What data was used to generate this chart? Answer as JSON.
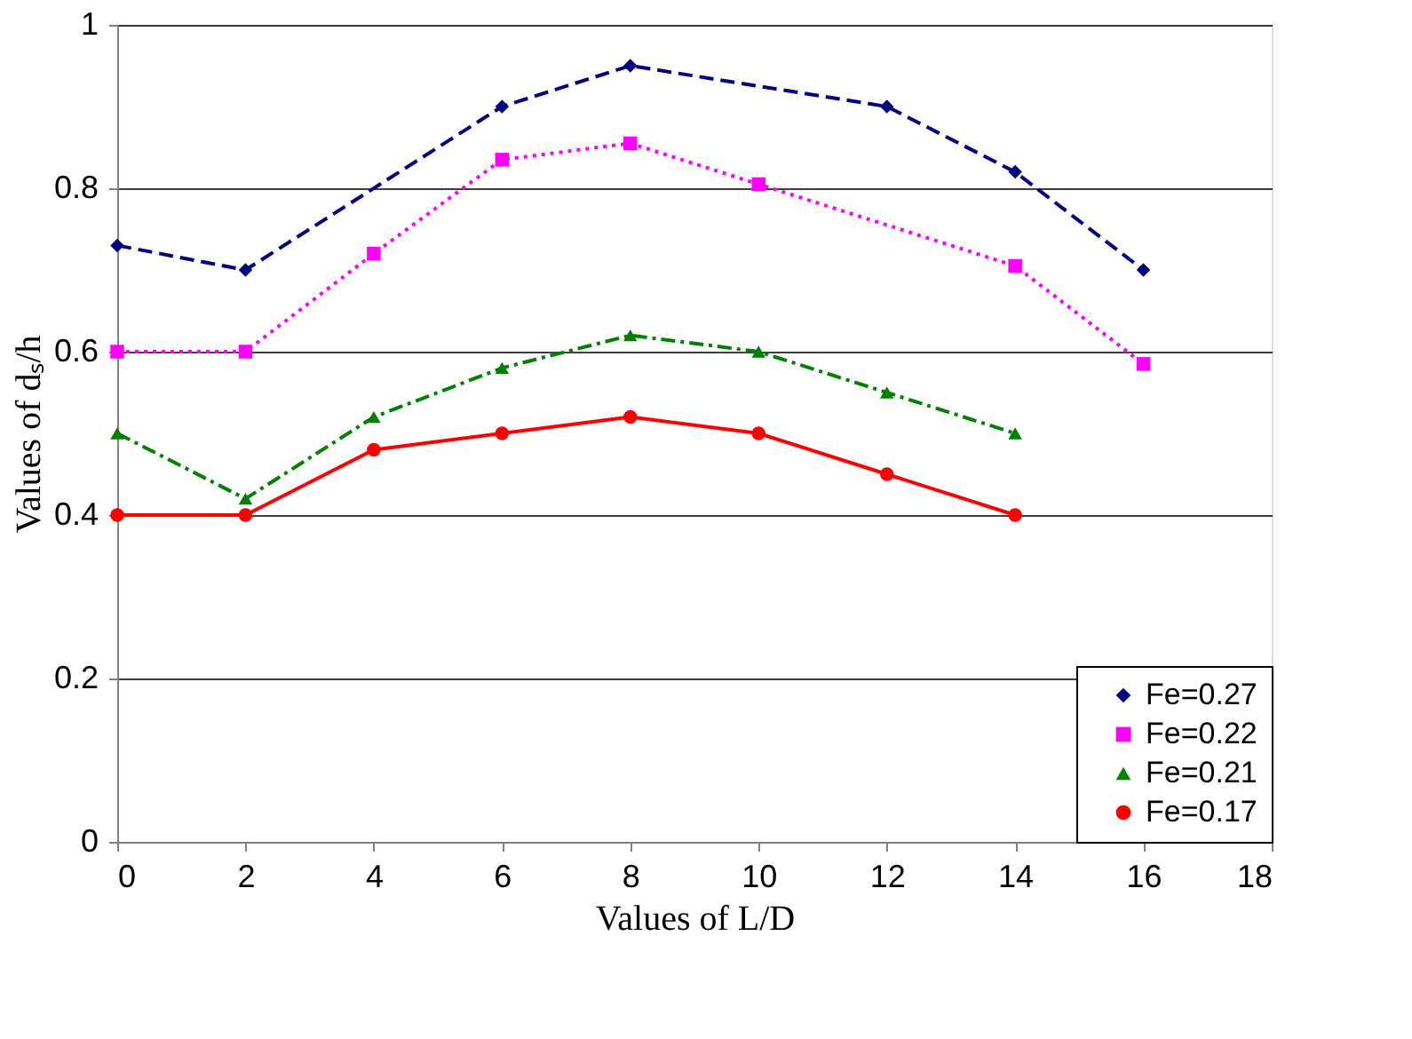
{
  "chart_data": {
    "type": "line",
    "xlabel": "Values of L/D",
    "ylabel": "Values of dₛ/h",
    "xlim": [
      0,
      18
    ],
    "xticks": [
      0,
      2,
      4,
      6,
      8,
      10,
      12,
      14,
      16,
      18
    ],
    "ylim": [
      0,
      1
    ],
    "yticks": [
      0,
      0.2,
      0.4,
      0.6,
      0.8,
      1
    ],
    "grid": "y",
    "legend": "bottom right",
    "series": [
      {
        "name": "Fe=0.27",
        "color": "#000080",
        "marker": "diamond",
        "line_style": "dashed",
        "x": [
          0,
          2,
          6,
          8,
          12,
          14,
          16
        ],
        "values": [
          0.73,
          0.7,
          0.9,
          0.95,
          0.9,
          0.82,
          0.7
        ]
      },
      {
        "name": "Fe=0.22",
        "color": "#ff00ff",
        "marker": "square",
        "line_style": "dotted",
        "x": [
          0,
          2,
          4,
          6,
          8,
          10,
          14,
          16
        ],
        "values": [
          0.6,
          0.6,
          0.72,
          0.835,
          0.855,
          0.805,
          0.705,
          0.585
        ]
      },
      {
        "name": "Fe=0.21",
        "color": "#008000",
        "marker": "triangle",
        "line_style": "dashed",
        "x": [
          0,
          2,
          4,
          6,
          8,
          10,
          12,
          14
        ],
        "values": [
          0.5,
          0.42,
          0.52,
          0.58,
          0.62,
          0.6,
          0.55,
          0.5
        ]
      },
      {
        "name": "Fe=0.17",
        "color": "#ff0000",
        "marker": "circle",
        "line_style": "solid",
        "x": [
          0,
          2,
          4,
          6,
          8,
          10,
          12,
          14
        ],
        "values": [
          0.4,
          0.4,
          0.48,
          0.5,
          0.52,
          0.5,
          0.45,
          0.4
        ]
      }
    ]
  }
}
